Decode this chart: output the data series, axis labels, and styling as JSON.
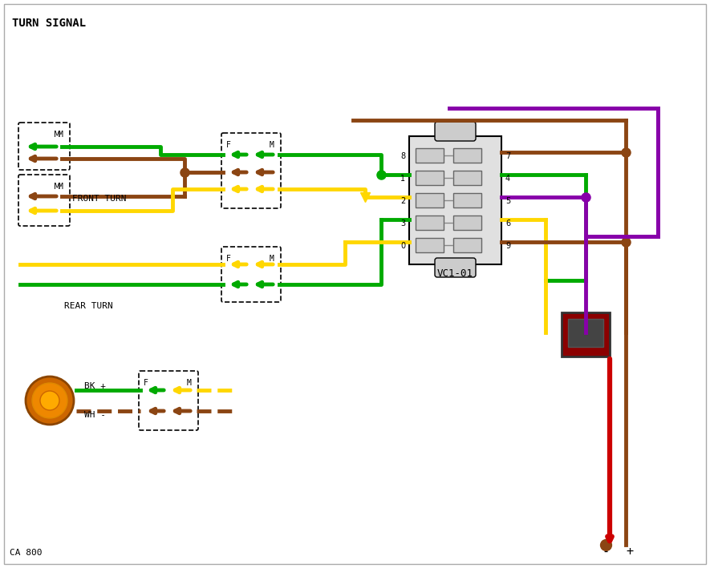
{
  "title": "TURN SIGNAL",
  "footer": "CA 800",
  "bg_color": "#ffffff",
  "border_color": "#aaaaaa",
  "colors": {
    "green": "#00aa00",
    "brown": "#8B4513",
    "yellow": "#FFD700",
    "purple": "#8800aa",
    "red": "#cc0000",
    "black": "#000000",
    "darkgray": "#444444"
  },
  "connector_label": "VC1-01",
  "connector_pins_left": [
    "8",
    "1",
    "2",
    "3",
    "0"
  ],
  "connector_pins_right": [
    "7",
    "4",
    "5",
    "6",
    "9"
  ]
}
